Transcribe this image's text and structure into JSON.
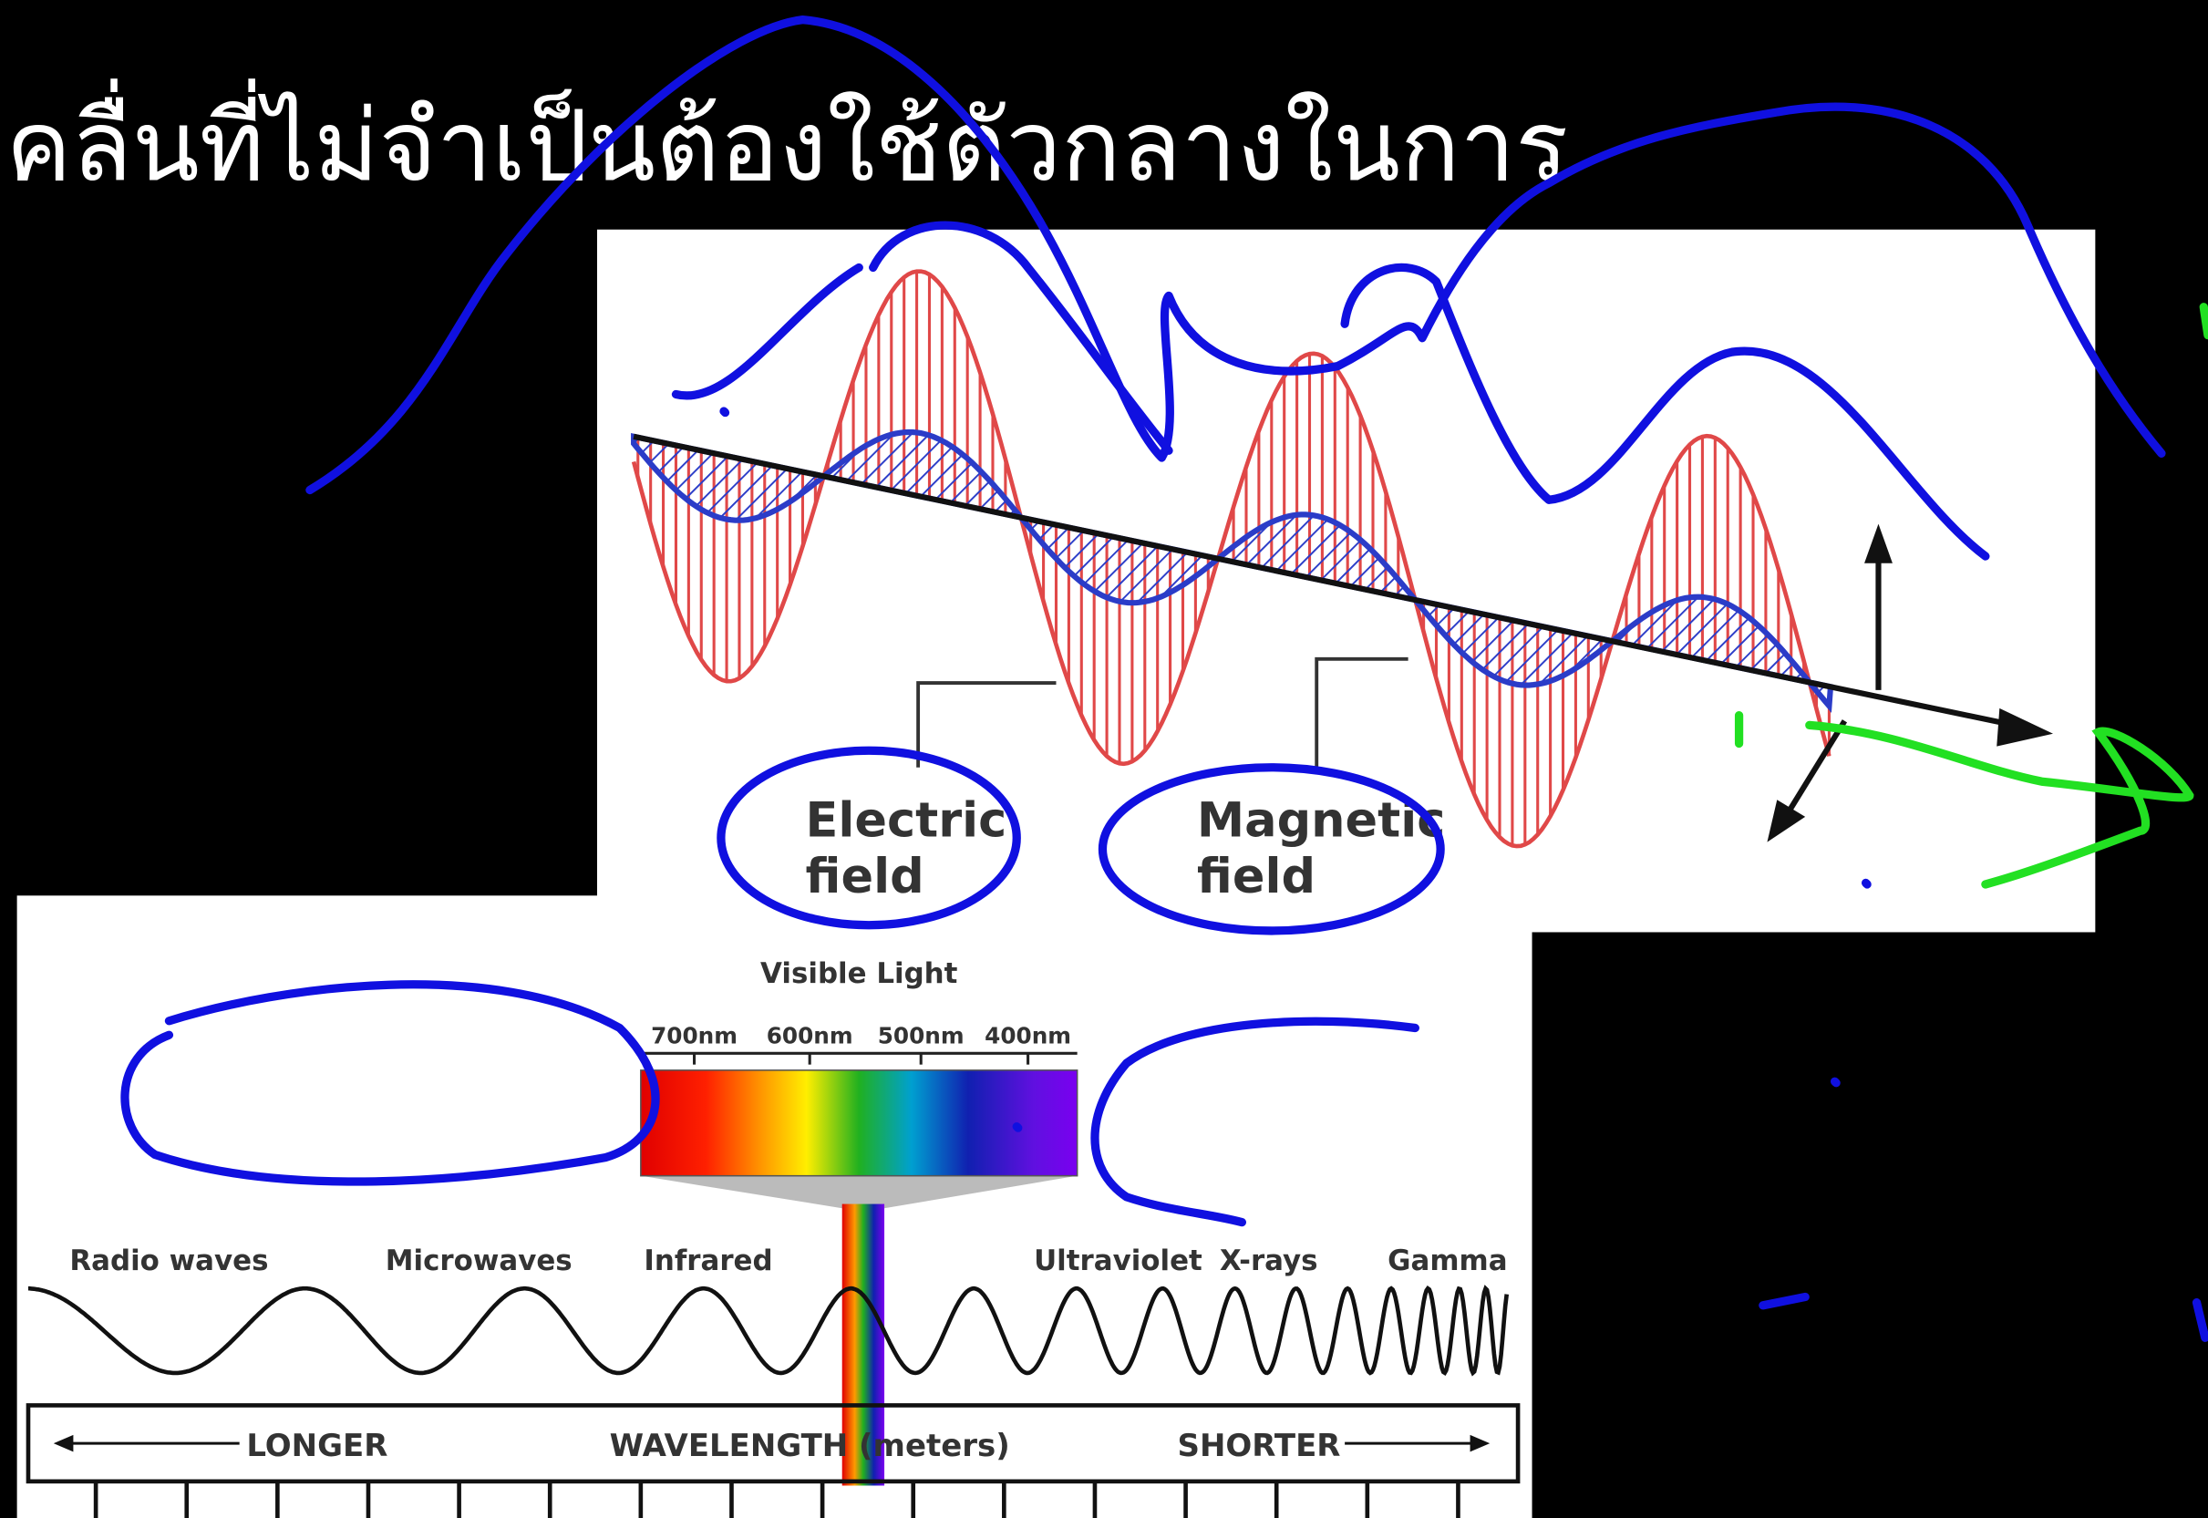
{
  "title": "คลื่นที่ไม่จำเป็นต้องใช้ตัวกลางในการ",
  "em_wave": {
    "electric_field": [
      "Electric",
      "field"
    ],
    "magnetic_field": [
      "Magnetic",
      "field"
    ]
  },
  "spectrum": {
    "visible_title": "Visible Light",
    "visible_ticks": [
      "700nm",
      "600nm",
      "500nm",
      "400nm"
    ],
    "bands": [
      "Radio waves",
      "Microwaves",
      "Infrared",
      "Ultraviolet",
      "X-rays",
      "Gamma"
    ],
    "axis": [
      "LONGER",
      "WAVELENGTH (meters)",
      "SHORTER"
    ]
  }
}
